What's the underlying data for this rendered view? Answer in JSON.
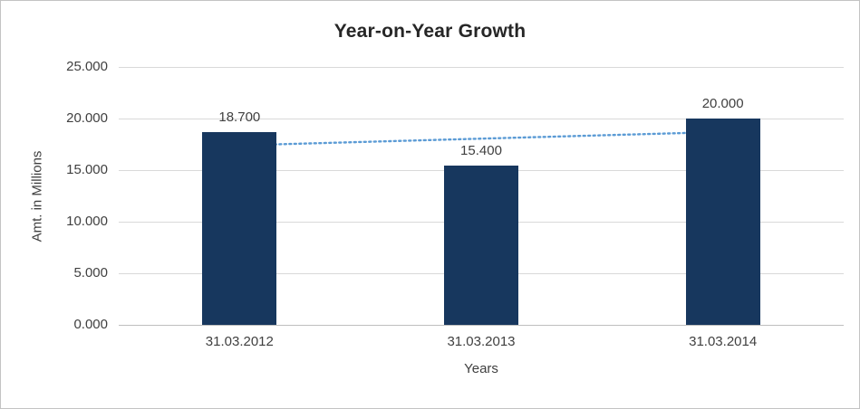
{
  "chart_data": {
    "type": "bar",
    "title": "Year-on-Year Growth",
    "xlabel": "Years",
    "ylabel": "Amt. in Millions",
    "categories": [
      "31.03.2012",
      "31.03.2013",
      "31.03.2014"
    ],
    "values": [
      18.7,
      15.4,
      20.0
    ],
    "value_labels": [
      "18.700",
      "15.400",
      "20.000"
    ],
    "y_ticks": [
      0,
      5,
      10,
      15,
      20,
      25
    ],
    "y_tick_labels": [
      "0.000",
      "5.000",
      "10.000",
      "15.000",
      "20.000",
      "25.000"
    ],
    "ylim": [
      0,
      25
    ],
    "grid": true,
    "legend": "none",
    "bar_color": "#17375E",
    "gridline_color": "#d9d9d9",
    "trendline": {
      "style": "dotted",
      "color": "#5B9BD5",
      "start": 17.4,
      "end": 18.7
    }
  }
}
